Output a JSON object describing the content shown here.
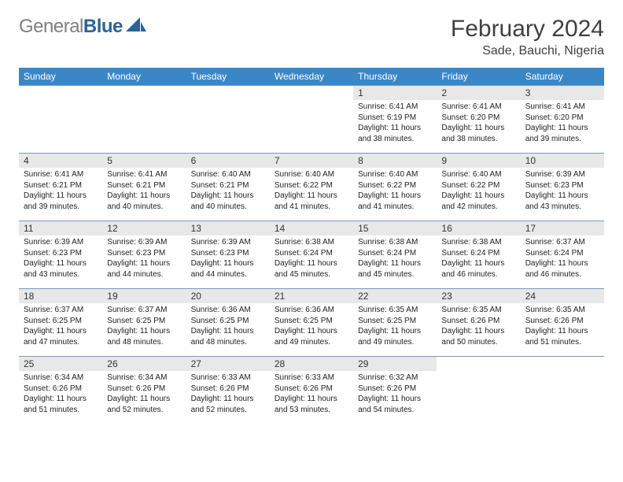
{
  "brand": {
    "part1": "General",
    "part2": "Blue"
  },
  "title": "February 2024",
  "location": "Sade, Bauchi, Nigeria",
  "colors": {
    "header_bg": "#3a87c8",
    "header_text": "#ffffff",
    "daynum_bg": "#e8e8e8",
    "cell_border": "#7a99b8",
    "title_color": "#404040"
  },
  "weekdays": [
    "Sunday",
    "Monday",
    "Tuesday",
    "Wednesday",
    "Thursday",
    "Friday",
    "Saturday"
  ],
  "weeks": [
    [
      {
        "empty": true
      },
      {
        "empty": true
      },
      {
        "empty": true
      },
      {
        "empty": true
      },
      {
        "day": "1",
        "sunrise": "Sunrise: 6:41 AM",
        "sunset": "Sunset: 6:19 PM",
        "daylight": "Daylight: 11 hours and 38 minutes."
      },
      {
        "day": "2",
        "sunrise": "Sunrise: 6:41 AM",
        "sunset": "Sunset: 6:20 PM",
        "daylight": "Daylight: 11 hours and 38 minutes."
      },
      {
        "day": "3",
        "sunrise": "Sunrise: 6:41 AM",
        "sunset": "Sunset: 6:20 PM",
        "daylight": "Daylight: 11 hours and 39 minutes."
      }
    ],
    [
      {
        "day": "4",
        "sunrise": "Sunrise: 6:41 AM",
        "sunset": "Sunset: 6:21 PM",
        "daylight": "Daylight: 11 hours and 39 minutes."
      },
      {
        "day": "5",
        "sunrise": "Sunrise: 6:41 AM",
        "sunset": "Sunset: 6:21 PM",
        "daylight": "Daylight: 11 hours and 40 minutes."
      },
      {
        "day": "6",
        "sunrise": "Sunrise: 6:40 AM",
        "sunset": "Sunset: 6:21 PM",
        "daylight": "Daylight: 11 hours and 40 minutes."
      },
      {
        "day": "7",
        "sunrise": "Sunrise: 6:40 AM",
        "sunset": "Sunset: 6:22 PM",
        "daylight": "Daylight: 11 hours and 41 minutes."
      },
      {
        "day": "8",
        "sunrise": "Sunrise: 6:40 AM",
        "sunset": "Sunset: 6:22 PM",
        "daylight": "Daylight: 11 hours and 41 minutes."
      },
      {
        "day": "9",
        "sunrise": "Sunrise: 6:40 AM",
        "sunset": "Sunset: 6:22 PM",
        "daylight": "Daylight: 11 hours and 42 minutes."
      },
      {
        "day": "10",
        "sunrise": "Sunrise: 6:39 AM",
        "sunset": "Sunset: 6:23 PM",
        "daylight": "Daylight: 11 hours and 43 minutes."
      }
    ],
    [
      {
        "day": "11",
        "sunrise": "Sunrise: 6:39 AM",
        "sunset": "Sunset: 6:23 PM",
        "daylight": "Daylight: 11 hours and 43 minutes."
      },
      {
        "day": "12",
        "sunrise": "Sunrise: 6:39 AM",
        "sunset": "Sunset: 6:23 PM",
        "daylight": "Daylight: 11 hours and 44 minutes."
      },
      {
        "day": "13",
        "sunrise": "Sunrise: 6:39 AM",
        "sunset": "Sunset: 6:23 PM",
        "daylight": "Daylight: 11 hours and 44 minutes."
      },
      {
        "day": "14",
        "sunrise": "Sunrise: 6:38 AM",
        "sunset": "Sunset: 6:24 PM",
        "daylight": "Daylight: 11 hours and 45 minutes."
      },
      {
        "day": "15",
        "sunrise": "Sunrise: 6:38 AM",
        "sunset": "Sunset: 6:24 PM",
        "daylight": "Daylight: 11 hours and 45 minutes."
      },
      {
        "day": "16",
        "sunrise": "Sunrise: 6:38 AM",
        "sunset": "Sunset: 6:24 PM",
        "daylight": "Daylight: 11 hours and 46 minutes."
      },
      {
        "day": "17",
        "sunrise": "Sunrise: 6:37 AM",
        "sunset": "Sunset: 6:24 PM",
        "daylight": "Daylight: 11 hours and 46 minutes."
      }
    ],
    [
      {
        "day": "18",
        "sunrise": "Sunrise: 6:37 AM",
        "sunset": "Sunset: 6:25 PM",
        "daylight": "Daylight: 11 hours and 47 minutes."
      },
      {
        "day": "19",
        "sunrise": "Sunrise: 6:37 AM",
        "sunset": "Sunset: 6:25 PM",
        "daylight": "Daylight: 11 hours and 48 minutes."
      },
      {
        "day": "20",
        "sunrise": "Sunrise: 6:36 AM",
        "sunset": "Sunset: 6:25 PM",
        "daylight": "Daylight: 11 hours and 48 minutes."
      },
      {
        "day": "21",
        "sunrise": "Sunrise: 6:36 AM",
        "sunset": "Sunset: 6:25 PM",
        "daylight": "Daylight: 11 hours and 49 minutes."
      },
      {
        "day": "22",
        "sunrise": "Sunrise: 6:35 AM",
        "sunset": "Sunset: 6:25 PM",
        "daylight": "Daylight: 11 hours and 49 minutes."
      },
      {
        "day": "23",
        "sunrise": "Sunrise: 6:35 AM",
        "sunset": "Sunset: 6:26 PM",
        "daylight": "Daylight: 11 hours and 50 minutes."
      },
      {
        "day": "24",
        "sunrise": "Sunrise: 6:35 AM",
        "sunset": "Sunset: 6:26 PM",
        "daylight": "Daylight: 11 hours and 51 minutes."
      }
    ],
    [
      {
        "day": "25",
        "sunrise": "Sunrise: 6:34 AM",
        "sunset": "Sunset: 6:26 PM",
        "daylight": "Daylight: 11 hours and 51 minutes."
      },
      {
        "day": "26",
        "sunrise": "Sunrise: 6:34 AM",
        "sunset": "Sunset: 6:26 PM",
        "daylight": "Daylight: 11 hours and 52 minutes."
      },
      {
        "day": "27",
        "sunrise": "Sunrise: 6:33 AM",
        "sunset": "Sunset: 6:26 PM",
        "daylight": "Daylight: 11 hours and 52 minutes."
      },
      {
        "day": "28",
        "sunrise": "Sunrise: 6:33 AM",
        "sunset": "Sunset: 6:26 PM",
        "daylight": "Daylight: 11 hours and 53 minutes."
      },
      {
        "day": "29",
        "sunrise": "Sunrise: 6:32 AM",
        "sunset": "Sunset: 6:26 PM",
        "daylight": "Daylight: 11 hours and 54 minutes."
      },
      {
        "empty": true
      },
      {
        "empty": true
      }
    ]
  ]
}
